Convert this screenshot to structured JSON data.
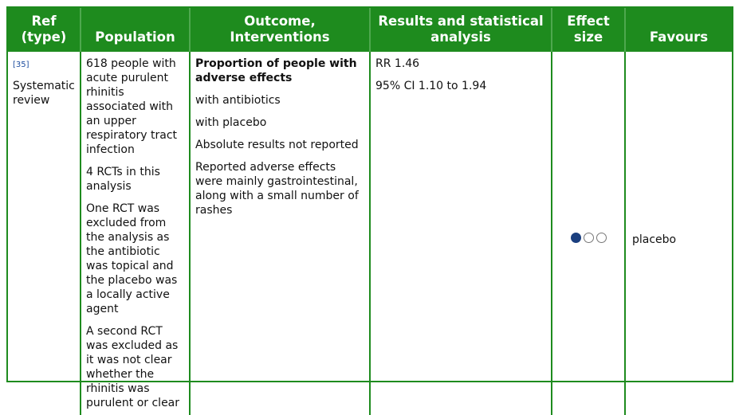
{
  "headers": {
    "ref": "Ref (type)",
    "population": "Population",
    "outcome": "Outcome, Interventions",
    "results": "Results and statistical analysis",
    "effect_size": "Effect size",
    "favours": "Favours"
  },
  "row": {
    "ref_link": "[35]",
    "ref_type": "Systematic review",
    "population": [
      "618 people with acute purulent rhinitis associated with an upper respiratory tract infection",
      "4 RCTs in this analysis",
      "One RCT was excluded from the analysis as the antibiotic was topical and the placebo was a locally active agent",
      "A second RCT was excluded as it was not clear whether the rhinitis was purulent or clear"
    ],
    "outcome_title": "Proportion of people with adverse effects",
    "outcome_items": [
      "with antibiotics",
      "with placebo",
      "Absolute results not reported",
      "Reported adverse effects were mainly gastrointestinal, along with a small number of rashes"
    ],
    "results": [
      "RR 1.46",
      "95% CI 1.10 to 1.94"
    ],
    "effect_size": {
      "filled": 1,
      "total": 3,
      "filled_color": "#1b3f7f"
    },
    "favours": "placebo"
  },
  "colors": {
    "header_bg": "#1e8b1e",
    "header_text": "#ffffff",
    "link": "#1f4fa0"
  }
}
